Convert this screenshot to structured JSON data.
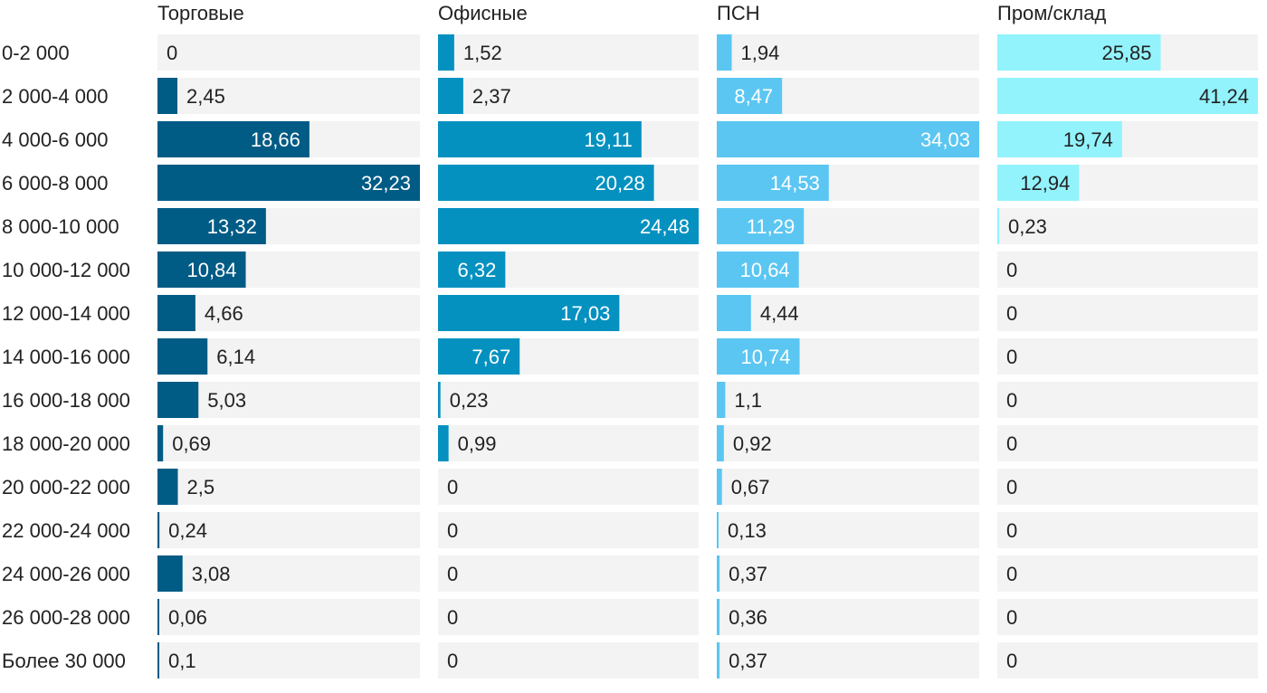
{
  "chart_data": {
    "type": "bar",
    "orientation": "horizontal",
    "layout": "small-multiples",
    "categories": [
      "0-2 000",
      "2 000-4 000",
      "4 000-6 000",
      "6 000-8 000",
      "8 000-10 000",
      "10 000-12 000",
      "12 000-14 000",
      "14 000-16 000",
      "16 000-18 000",
      "18 000-20 000",
      "20 000-22 000",
      "22 000-24 000",
      "24 000-26 000",
      "26 000-28 000",
      "Более 30 000"
    ],
    "series": [
      {
        "name": "Торговые",
        "color": "#005b85",
        "values": [
          0,
          2.45,
          18.66,
          32.23,
          13.32,
          10.84,
          4.66,
          6.14,
          5.03,
          0.69,
          2.5,
          0.24,
          3.08,
          0.06,
          0.1
        ],
        "labels": [
          "0",
          "2,45",
          "18,66",
          "32,23",
          "13,32",
          "10,84",
          "4,66",
          "6,14",
          "5,03",
          "0,69",
          "2,5",
          "0,24",
          "3,08",
          "0,06",
          "0,1"
        ]
      },
      {
        "name": "Офисные",
        "color": "#0591c0",
        "values": [
          1.52,
          2.37,
          19.11,
          20.28,
          24.48,
          6.32,
          17.03,
          7.67,
          0.23,
          0.99,
          0,
          0,
          0,
          0,
          0
        ],
        "labels": [
          "1,52",
          "2,37",
          "19,11",
          "20,28",
          "24,48",
          "6,32",
          "17,03",
          "7,67",
          "0,23",
          "0,99",
          "0",
          "0",
          "0",
          "0",
          "0"
        ]
      },
      {
        "name": "ПСН",
        "color": "#5bc6f2",
        "values": [
          1.94,
          8.47,
          34.03,
          14.53,
          11.29,
          10.64,
          4.44,
          10.74,
          1.1,
          0.92,
          0.67,
          0.13,
          0.37,
          0.36,
          0.37
        ],
        "labels": [
          "1,94",
          "8,47",
          "34,03",
          "14,53",
          "11,29",
          "10,64",
          "4,44",
          "10,74",
          "1,1",
          "0,92",
          "0,67",
          "0,13",
          "0,37",
          "0,36",
          "0,37"
        ]
      },
      {
        "name": "Пром/склад",
        "color": "#93f3fc",
        "values": [
          25.85,
          41.24,
          19.74,
          12.94,
          0.23,
          0,
          0,
          0,
          0,
          0,
          0,
          0,
          0,
          0,
          0
        ],
        "labels": [
          "25,85",
          "41,24",
          "19,74",
          "12,94",
          "0,23",
          "0",
          "0",
          "0",
          "0",
          "0",
          "0",
          "0",
          "0",
          "0",
          "0"
        ]
      }
    ],
    "track_color": "#f3f3f3",
    "label_color_inside_dark": "#ffffff",
    "label_color_outside": "#222222"
  }
}
